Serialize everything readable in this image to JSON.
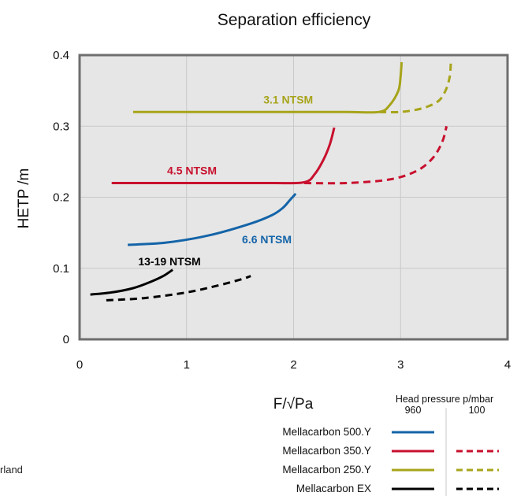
{
  "chart_data": {
    "type": "line",
    "title": "Separation efficiency",
    "xlabel": "F/√Pa",
    "ylabel": "HETP /m",
    "xlim": [
      0,
      4
    ],
    "ylim": [
      0,
      0.4
    ],
    "x_ticks": [
      {
        "value": 0,
        "label": "0"
      },
      {
        "value": 1,
        "label": "1"
      },
      {
        "value": 2,
        "label": "2"
      },
      {
        "value": 3,
        "label": "3"
      },
      {
        "value": 4,
        "label": "4"
      }
    ],
    "y_ticks": [
      {
        "value": 0,
        "label": "0"
      },
      {
        "value": 0.1,
        "label": "0.1"
      },
      {
        "value": 0.2,
        "label": "0.2"
      },
      {
        "value": 0.3,
        "label": "0.3"
      },
      {
        "value": 0.4,
        "label": "0.4"
      }
    ],
    "grid": true,
    "plot_background": "#e6e6e6",
    "series": [
      {
        "name": "Mellacarbon 250.Y",
        "pressure": "960",
        "color": "#a7a41a",
        "dash": "solid",
        "x": [
          0.5,
          1.0,
          1.5,
          2.0,
          2.5,
          2.8,
          2.9,
          2.98,
          3.0,
          3.01
        ],
        "y": [
          0.32,
          0.32,
          0.32,
          0.32,
          0.32,
          0.32,
          0.33,
          0.35,
          0.37,
          0.39
        ]
      },
      {
        "name": "Mellacarbon 250.Y",
        "pressure": "100",
        "color": "#a7a41a",
        "dash": "dashed",
        "x": [
          2.8,
          3.0,
          3.2,
          3.35,
          3.42,
          3.46,
          3.47
        ],
        "y": [
          0.32,
          0.32,
          0.325,
          0.335,
          0.35,
          0.37,
          0.39
        ]
      },
      {
        "name": "Mellacarbon 350.Y",
        "pressure": "960",
        "color": "#c8102e",
        "dash": "solid",
        "x": [
          0.3,
          0.8,
          1.3,
          1.8,
          2.1,
          2.2,
          2.28,
          2.34,
          2.38
        ],
        "y": [
          0.22,
          0.22,
          0.22,
          0.22,
          0.221,
          0.233,
          0.253,
          0.275,
          0.298
        ]
      },
      {
        "name": "Mellacarbon 350.Y",
        "pressure": "100",
        "color": "#c8102e",
        "dash": "dashed",
        "x": [
          2.1,
          2.5,
          2.9,
          3.15,
          3.3,
          3.39,
          3.43
        ],
        "y": [
          0.22,
          0.22,
          0.225,
          0.237,
          0.255,
          0.278,
          0.3
        ]
      },
      {
        "name": "Mellacarbon 500.Y",
        "pressure": "960",
        "color": "#1464a8",
        "dash": "solid",
        "x": [
          0.45,
          0.8,
          1.2,
          1.6,
          1.8,
          1.9,
          1.96,
          2.02
        ],
        "y": [
          0.133,
          0.136,
          0.146,
          0.163,
          0.175,
          0.185,
          0.195,
          0.205
        ]
      },
      {
        "name": "Mellacarbon EX",
        "pressure": "960",
        "color": "#000000",
        "dash": "solid",
        "x": [
          0.1,
          0.3,
          0.5,
          0.65,
          0.78,
          0.87
        ],
        "y": [
          0.063,
          0.066,
          0.072,
          0.08,
          0.089,
          0.098
        ]
      },
      {
        "name": "Mellacarbon EX",
        "pressure": "100",
        "color": "#000000",
        "dash": "dashed",
        "x": [
          0.25,
          0.6,
          1.0,
          1.3,
          1.5,
          1.6
        ],
        "y": [
          0.055,
          0.058,
          0.066,
          0.076,
          0.084,
          0.089
        ]
      }
    ],
    "annotations": [
      {
        "text": "3.1 NTSM",
        "x": 1.95,
        "y": 0.332,
        "color": "#a7a41a"
      },
      {
        "text": "4.5 NTSM",
        "x": 1.05,
        "y": 0.232,
        "color": "#c8102e"
      },
      {
        "text": "6.6 NTSM",
        "x": 1.75,
        "y": 0.135,
        "color": "#1464a8"
      },
      {
        "text": "13-19 NTSM",
        "x": 0.84,
        "y": 0.104,
        "color": "#000000"
      }
    ]
  },
  "legend": {
    "header": "Head pressure p/mbar",
    "columns": [
      "960",
      "100"
    ],
    "rows": [
      {
        "label": "Mellacarbon 500.Y",
        "color": "#1464a8",
        "col960": true,
        "col100": false
      },
      {
        "label": "Mellacarbon 350.Y",
        "color": "#c8102e",
        "col960": true,
        "col100": true
      },
      {
        "label": "Mellacarbon 250.Y",
        "color": "#a7a41a",
        "col960": true,
        "col100": true
      },
      {
        "label": "Mellacarbon EX",
        "color": "#000000",
        "col960": true,
        "col100": true
      }
    ]
  },
  "cropped_text": "rland"
}
